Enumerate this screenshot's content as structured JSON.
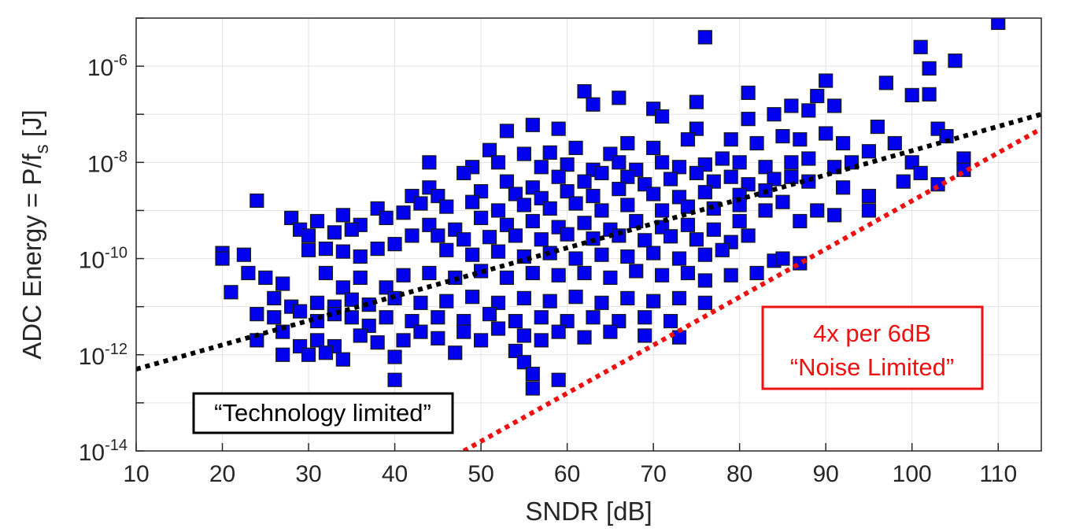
{
  "chart_data": {
    "type": "scatter",
    "xlabel": "SNDR [dB]",
    "ylabel_main": "ADC Energy = P/f",
    "ylabel_sub": "s",
    "ylabel_unit": " [J]",
    "xlim": [
      10,
      115
    ],
    "ylim": [
      1e-14,
      1e-05
    ],
    "yscale": "log",
    "grid": true,
    "xticks": [
      "10",
      "20",
      "30",
      "40",
      "50",
      "60",
      "70",
      "80",
      "90",
      "100",
      "110"
    ],
    "yticks": [
      {
        "base": "10",
        "exp": "-14"
      },
      {
        "base": "10",
        "exp": "-12"
      },
      {
        "base": "10",
        "exp": "-10"
      },
      {
        "base": "10",
        "exp": "-8"
      },
      {
        "base": "10",
        "exp": "-6"
      }
    ],
    "series": [
      {
        "marker": "square",
        "color": "#0000ee",
        "edge": "#1a1a1a",
        "points": [
          [
            110,
            8e-06
          ],
          [
            76,
            4e-06
          ],
          [
            101,
            2.5e-06
          ],
          [
            105,
            1.3e-06
          ],
          [
            102,
            9e-07
          ],
          [
            90,
            5e-07
          ],
          [
            97,
            4.5e-07
          ],
          [
            62,
            3e-07
          ],
          [
            66,
            2.2e-07
          ],
          [
            81,
            2.8e-07
          ],
          [
            100,
            2.5e-07
          ],
          [
            102,
            2.6e-07
          ],
          [
            63,
            1.6e-07
          ],
          [
            75,
            1.8e-07
          ],
          [
            70,
            1.3e-07
          ],
          [
            71,
            9e-08
          ],
          [
            86,
            1.5e-07
          ],
          [
            88,
            1.2e-07
          ],
          [
            89,
            2.4e-07
          ],
          [
            91,
            1.5e-07
          ],
          [
            84,
            1e-07
          ],
          [
            81,
            8e-08
          ],
          [
            56,
            6e-08
          ],
          [
            59,
            5e-08
          ],
          [
            53,
            4.5e-08
          ],
          [
            75,
            5e-08
          ],
          [
            96,
            5.5e-08
          ],
          [
            103,
            5e-08
          ],
          [
            79,
            3e-08
          ],
          [
            82,
            2.5e-08
          ],
          [
            85,
            3.5e-08
          ],
          [
            87,
            3e-08
          ],
          [
            90,
            4e-08
          ],
          [
            92,
            2.5e-08
          ],
          [
            98,
            2.5e-08
          ],
          [
            95,
            1.7e-08
          ],
          [
            104,
            3.5e-08
          ],
          [
            67,
            2.5e-08
          ],
          [
            70,
            2e-08
          ],
          [
            74,
            3e-08
          ],
          [
            61,
            2e-08
          ],
          [
            65,
            1.5e-08
          ],
          [
            51,
            1.8e-08
          ],
          [
            55,
            1.5e-08
          ],
          [
            58,
            1.6e-08
          ],
          [
            44,
            1e-08
          ],
          [
            49,
            8e-09
          ],
          [
            52,
            1e-08
          ],
          [
            57,
            8e-09
          ],
          [
            60,
            9e-09
          ],
          [
            63,
            7e-09
          ],
          [
            66,
            1e-08
          ],
          [
            68,
            7e-09
          ],
          [
            71,
            1e-08
          ],
          [
            73,
            8e-09
          ],
          [
            76,
            9e-09
          ],
          [
            78,
            1.2e-08
          ],
          [
            80,
            1e-08
          ],
          [
            83,
            8e-09
          ],
          [
            86,
            1e-08
          ],
          [
            88,
            1.2e-08
          ],
          [
            91,
            8e-09
          ],
          [
            93,
            1e-08
          ],
          [
            100,
            1e-08
          ],
          [
            101,
            6e-09
          ],
          [
            106,
            1.2e-08
          ],
          [
            48,
            6e-09
          ],
          [
            53,
            4e-09
          ],
          [
            56,
            3e-09
          ],
          [
            59,
            5e-09
          ],
          [
            62,
            4e-09
          ],
          [
            64,
            6e-09
          ],
          [
            67,
            5e-09
          ],
          [
            69,
            3.5e-09
          ],
          [
            72,
            4.5e-09
          ],
          [
            75,
            6e-09
          ],
          [
            77,
            4e-09
          ],
          [
            79,
            5e-09
          ],
          [
            81,
            3.5e-09
          ],
          [
            84,
            4.5e-09
          ],
          [
            86,
            5e-09
          ],
          [
            88,
            4e-09
          ],
          [
            99,
            4e-09
          ],
          [
            103,
            3.5e-09
          ],
          [
            106,
            7e-09
          ],
          [
            44,
            3e-09
          ],
          [
            42,
            2e-09
          ],
          [
            45,
            2e-09
          ],
          [
            50,
            2.5e-09
          ],
          [
            54,
            2.2e-09
          ],
          [
            57,
            1.8e-09
          ],
          [
            60,
            2.5e-09
          ],
          [
            63,
            2e-09
          ],
          [
            66,
            2.8e-09
          ],
          [
            70,
            2.2e-09
          ],
          [
            73,
            1.9e-09
          ],
          [
            76,
            2.4e-09
          ],
          [
            80,
            2.1e-09
          ],
          [
            83,
            2.6e-09
          ],
          [
            92,
            3e-09
          ],
          [
            95,
            2e-09
          ],
          [
            24,
            1.6e-09
          ],
          [
            38,
            1.1e-09
          ],
          [
            41,
            9e-10
          ],
          [
            43,
            1.4e-09
          ],
          [
            46,
            1.2e-09
          ],
          [
            49,
            1.5e-09
          ],
          [
            52,
            1e-09
          ],
          [
            55,
            1.3e-09
          ],
          [
            58,
            1.1e-09
          ],
          [
            61,
            1.4e-09
          ],
          [
            64,
            1e-09
          ],
          [
            67,
            1.3e-09
          ],
          [
            71,
            1e-09
          ],
          [
            74,
            1.2e-09
          ],
          [
            77,
            1.1e-09
          ],
          [
            80,
            1.3e-09
          ],
          [
            83,
            1e-09
          ],
          [
            85,
            1.5e-09
          ],
          [
            89,
            1e-09
          ],
          [
            91,
            8e-10
          ],
          [
            95,
            1e-09
          ],
          [
            28,
            7e-10
          ],
          [
            31,
            6e-10
          ],
          [
            34,
            8e-10
          ],
          [
            36,
            5e-10
          ],
          [
            39,
            7e-10
          ],
          [
            44,
            5e-10
          ],
          [
            47,
            4e-10
          ],
          [
            50,
            7e-10
          ],
          [
            53,
            5e-10
          ],
          [
            56,
            6e-10
          ],
          [
            59,
            4.5e-10
          ],
          [
            62,
            5.5e-10
          ],
          [
            65,
            4e-10
          ],
          [
            68,
            6e-10
          ],
          [
            71,
            4.5e-10
          ],
          [
            74,
            5e-10
          ],
          [
            77,
            4e-10
          ],
          [
            80,
            6e-10
          ],
          [
            87,
            6e-10
          ],
          [
            29,
            4e-10
          ],
          [
            30,
            3e-10
          ],
          [
            33,
            3.5e-10
          ],
          [
            35,
            4e-10
          ],
          [
            42,
            3e-10
          ],
          [
            45,
            3e-10
          ],
          [
            48,
            2.5e-10
          ],
          [
            51,
            2.8e-10
          ],
          [
            54,
            3e-10
          ],
          [
            57,
            2.5e-10
          ],
          [
            60,
            3.2e-10
          ],
          [
            63,
            2.6e-10
          ],
          [
            66,
            3e-10
          ],
          [
            69,
            2.4e-10
          ],
          [
            72,
            2.9e-10
          ],
          [
            75,
            2.5e-10
          ],
          [
            79,
            2.2e-10
          ],
          [
            81,
            3e-10
          ],
          [
            40,
            2e-10
          ],
          [
            30,
            1.5e-10
          ],
          [
            32,
            1.6e-10
          ],
          [
            34,
            1.4e-10
          ],
          [
            36,
            1.1e-10
          ],
          [
            38,
            1.6e-10
          ],
          [
            46,
            1.5e-10
          ],
          [
            49,
            1.2e-10
          ],
          [
            52,
            1.4e-10
          ],
          [
            55,
            1.1e-10
          ],
          [
            58,
            1.3e-10
          ],
          [
            61,
            1e-10
          ],
          [
            64,
            1.2e-10
          ],
          [
            67,
            1.1e-10
          ],
          [
            70,
            1.3e-10
          ],
          [
            73,
            1e-10
          ],
          [
            76,
            1.2e-10
          ],
          [
            78,
            1.5e-10
          ],
          [
            84,
            9e-11
          ],
          [
            85,
            1e-10
          ],
          [
            87,
            8e-11
          ],
          [
            20,
            1.3e-10
          ],
          [
            20,
            1e-10
          ],
          [
            22.5,
            1.2e-10
          ],
          [
            23,
            5e-11
          ],
          [
            21,
            2e-11
          ],
          [
            25,
            4e-11
          ],
          [
            27,
            3e-11
          ],
          [
            32,
            5e-11
          ],
          [
            34,
            2.5e-11
          ],
          [
            36,
            4e-11
          ],
          [
            39,
            2.5e-11
          ],
          [
            41,
            4.5e-11
          ],
          [
            44,
            5e-11
          ],
          [
            47,
            4e-11
          ],
          [
            50,
            5.5e-11
          ],
          [
            53,
            4e-11
          ],
          [
            56,
            5e-11
          ],
          [
            59,
            4.5e-11
          ],
          [
            62,
            5e-11
          ],
          [
            65,
            4e-11
          ],
          [
            68,
            5.5e-11
          ],
          [
            71,
            4.5e-11
          ],
          [
            74,
            5e-11
          ],
          [
            76,
            3.5e-11
          ],
          [
            79,
            4.5e-11
          ],
          [
            82,
            5e-11
          ],
          [
            26,
            1.5e-11
          ],
          [
            28,
            1e-11
          ],
          [
            31,
            1.2e-11
          ],
          [
            33,
            1e-11
          ],
          [
            35,
            1.4e-11
          ],
          [
            37,
            1.1e-11
          ],
          [
            40,
            1.5e-11
          ],
          [
            43,
            1.2e-11
          ],
          [
            46,
            1.3e-11
          ],
          [
            49,
            1.6e-11
          ],
          [
            52,
            1.2e-11
          ],
          [
            55,
            1.5e-11
          ],
          [
            58,
            1.3e-11
          ],
          [
            61,
            1.6e-11
          ],
          [
            64,
            1.2e-11
          ],
          [
            67,
            1.5e-11
          ],
          [
            70,
            1.3e-11
          ],
          [
            73,
            1.5e-11
          ],
          [
            76,
            1.2e-11
          ],
          [
            24,
            7e-12
          ],
          [
            26,
            6e-12
          ],
          [
            29,
            8e-12
          ],
          [
            31,
            5e-12
          ],
          [
            33,
            7e-12
          ],
          [
            35,
            6e-12
          ],
          [
            37,
            4e-12
          ],
          [
            39,
            6e-12
          ],
          [
            42,
            5e-12
          ],
          [
            45,
            6e-12
          ],
          [
            48,
            5e-12
          ],
          [
            51,
            7e-12
          ],
          [
            54,
            5e-12
          ],
          [
            57,
            6e-12
          ],
          [
            60,
            5e-12
          ],
          [
            63,
            6e-12
          ],
          [
            66,
            5e-12
          ],
          [
            69,
            6e-12
          ],
          [
            72,
            5e-12
          ],
          [
            24,
            2e-12
          ],
          [
            27,
            3e-12
          ],
          [
            29,
            1.5e-12
          ],
          [
            31,
            2e-12
          ],
          [
            33,
            1.5e-12
          ],
          [
            36,
            2.5e-12
          ],
          [
            38,
            1.8e-12
          ],
          [
            41,
            2e-12
          ],
          [
            43,
            3e-12
          ],
          [
            45,
            2.2e-12
          ],
          [
            48,
            3e-12
          ],
          [
            50,
            2e-12
          ],
          [
            52,
            3.5e-12
          ],
          [
            55,
            2.5e-12
          ],
          [
            57,
            2e-12
          ],
          [
            59,
            3e-12
          ],
          [
            62,
            2.3e-12
          ],
          [
            65,
            3e-12
          ],
          [
            69,
            2.5e-12
          ],
          [
            73,
            2.3e-12
          ],
          [
            27,
            1e-12
          ],
          [
            30,
            1e-12
          ],
          [
            32,
            1.1e-12
          ],
          [
            34,
            8e-13
          ],
          [
            40,
            9e-13
          ],
          [
            47,
            1.1e-12
          ],
          [
            54,
            1.2e-12
          ],
          [
            55,
            7e-13
          ],
          [
            56,
            4e-13
          ],
          [
            56,
            2e-13
          ],
          [
            40,
            3e-13
          ],
          [
            59,
            3e-13
          ]
        ]
      }
    ],
    "reference_lines": [
      {
        "label": "“Technology limited”",
        "color": "#000000",
        "from": [
          10,
          5e-13
        ],
        "to": [
          115,
          1e-07
        ]
      },
      {
        "label": "4x per 6dB",
        "label2": "“Noise Limited”",
        "color": "#ee1111",
        "from": [
          48,
          1e-14
        ],
        "to": [
          115,
          5e-08
        ]
      }
    ]
  }
}
